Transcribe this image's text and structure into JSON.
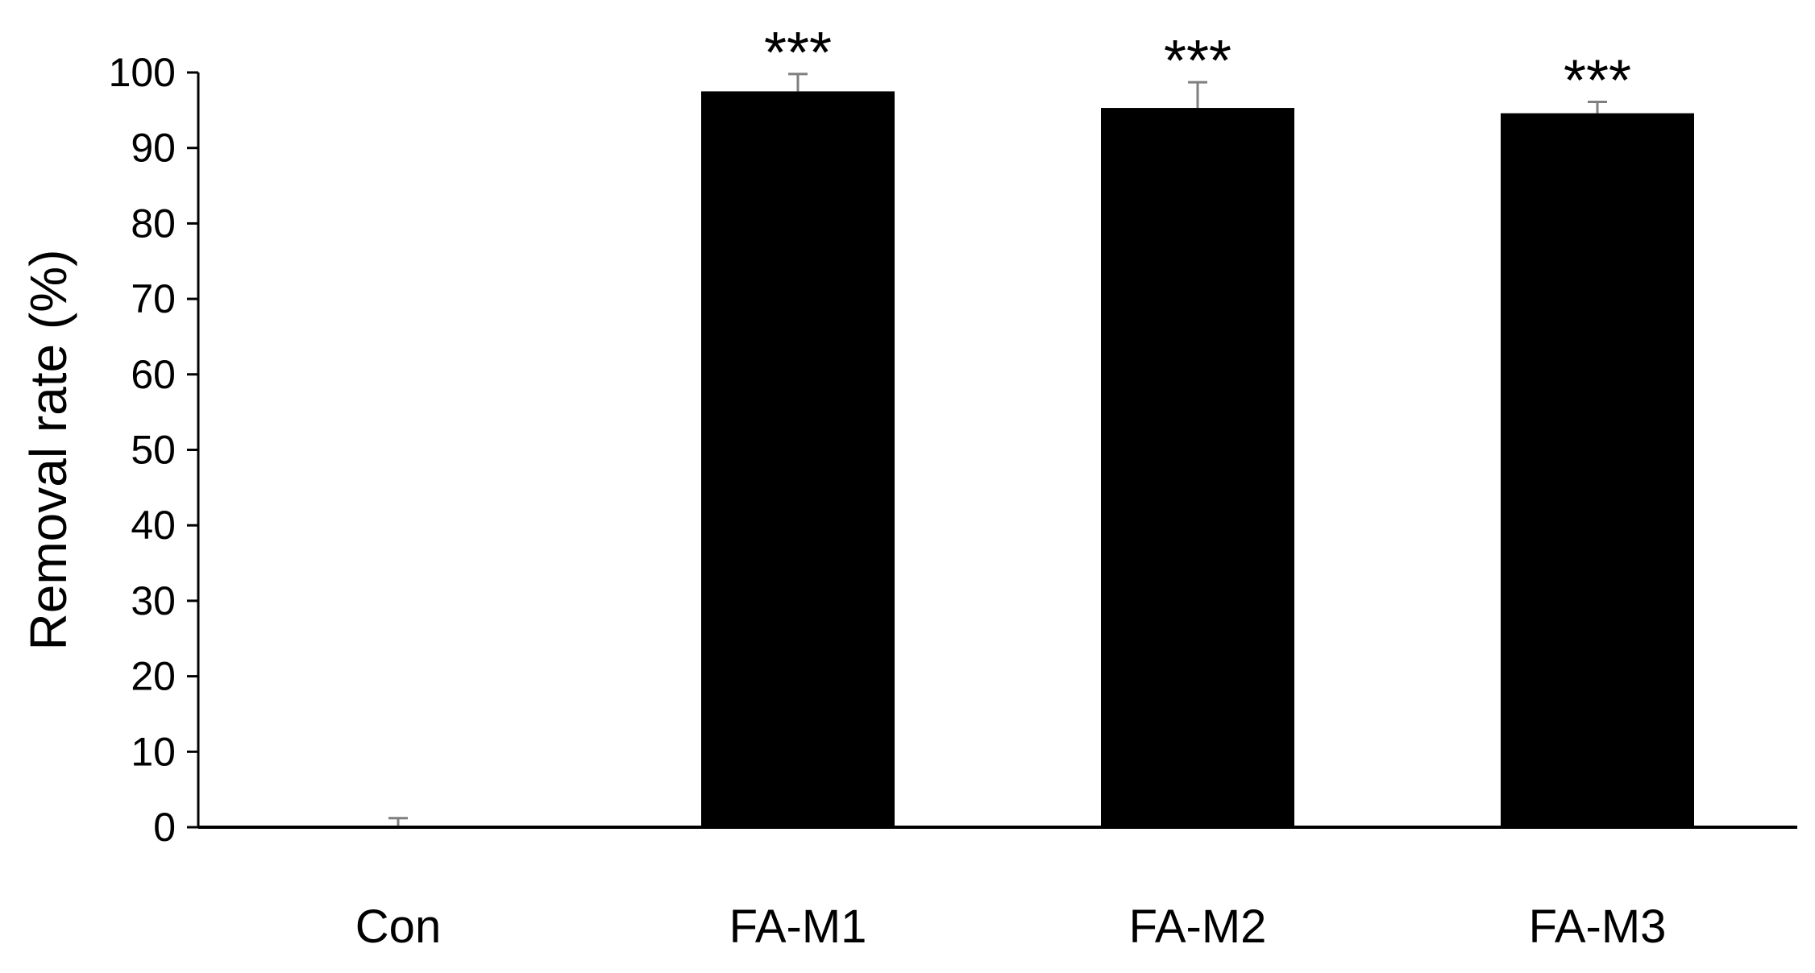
{
  "chart_data": {
    "type": "bar",
    "title": "",
    "xlabel": "",
    "ylabel": "Removal rate (%)",
    "ylim": [
      0,
      100
    ],
    "yticks": [
      0,
      10,
      20,
      30,
      40,
      50,
      60,
      70,
      80,
      90,
      100
    ],
    "categories": [
      "Con",
      "FA-M1",
      "FA-M2",
      "FA-M3"
    ],
    "values": [
      0,
      97.5,
      95.3,
      94.6
    ],
    "errors": [
      1.2,
      2.3,
      3.4,
      1.5
    ],
    "significance": [
      "",
      "***",
      "***",
      "***"
    ],
    "grid": false,
    "legend": "none",
    "colors": {
      "bar": "#000000",
      "error_bar": "#7f7f7f",
      "axis": "#000000"
    }
  }
}
